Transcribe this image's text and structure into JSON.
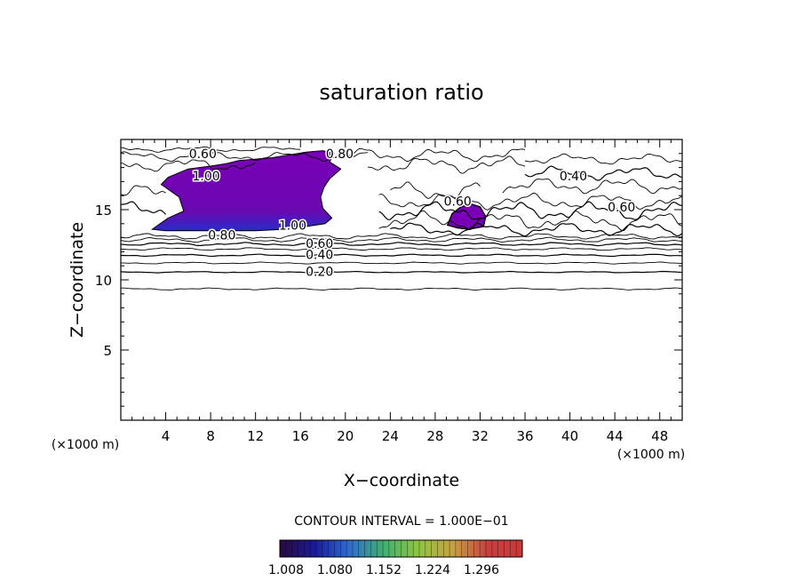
{
  "chart_data": {
    "type": "contour",
    "title": "saturation ratio",
    "xlabel": "X−coordinate",
    "ylabel": "Z−coordinate",
    "x_unit": "(×1000 m)",
    "y_unit": "(×1000 m)",
    "xlim": [
      0,
      50
    ],
    "ylim": [
      0,
      20
    ],
    "x_ticks": [
      4,
      8,
      12,
      16,
      20,
      24,
      28,
      32,
      36,
      40,
      44,
      48
    ],
    "y_ticks": [
      5,
      10,
      15
    ],
    "contour_interval_text": "CONTOUR INTERVAL = 1.000E−01",
    "contour_labels": [
      {
        "text": "0.60",
        "x": 7.3,
        "z": 19.0
      },
      {
        "text": "0.80",
        "x": 19.5,
        "z": 19.0
      },
      {
        "text": "1.00",
        "x": 7.6,
        "z": 17.4
      },
      {
        "text": "0.40",
        "x": 40.3,
        "z": 17.4
      },
      {
        "text": "0.60",
        "x": 30.0,
        "z": 15.6
      },
      {
        "text": "1.00",
        "x": 15.3,
        "z": 13.9
      },
      {
        "text": "0.60",
        "x": 44.6,
        "z": 15.2
      },
      {
        "text": "0.80",
        "x": 9.0,
        "z": 13.2
      },
      {
        "text": "0.60",
        "x": 17.7,
        "z": 12.6
      },
      {
        "text": "0.40",
        "x": 17.7,
        "z": 11.8
      },
      {
        "text": "0.20",
        "x": 17.7,
        "z": 10.6
      }
    ],
    "colorbar": {
      "ticks": [
        "1.008",
        "1.080",
        "1.152",
        "1.224",
        "1.296"
      ],
      "colors": [
        "#2a0a3e",
        "#1a1a9a",
        "#2f6dd0",
        "#3fb070",
        "#8fc640",
        "#c8a040",
        "#c84040",
        "#c83a3a"
      ]
    },
    "fill_color": "#7a00b8",
    "grid": false
  }
}
